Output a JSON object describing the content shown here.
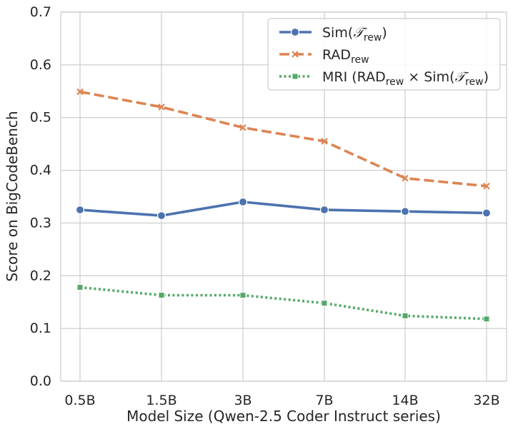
{
  "chart_data": {
    "type": "line",
    "categories": [
      "0.5B",
      "1.5B",
      "3B",
      "7B",
      "14B",
      "32B"
    ],
    "xlabel": "Model Size (Qwen-2.5 Coder Instruct series)",
    "ylabel": "Score on BigCodeBench",
    "ylim": [
      0,
      0.7
    ],
    "yticks": [
      "0.0",
      "0.1",
      "0.2",
      "0.3",
      "0.4",
      "0.5",
      "0.6",
      "0.7"
    ],
    "grid": true,
    "legend_position": "top-right",
    "series": [
      {
        "name": "Sim(𝒯rew)",
        "legend": {
          "pre": "Sim(",
          "main": "𝒯",
          "sub": "rew",
          "post": ")"
        },
        "values": [
          0.325,
          0.314,
          0.34,
          0.325,
          0.322,
          0.319
        ],
        "color": "#4c72b0",
        "style": "solid",
        "marker": "circle"
      },
      {
        "name": "RADrew",
        "legend": {
          "pre": "RAD",
          "sub": "rew"
        },
        "values": [
          0.549,
          0.52,
          0.481,
          0.455,
          0.385,
          0.37
        ],
        "color": "#dd8452",
        "style": "dashed",
        "marker": "x"
      },
      {
        "name": "MRI (RADrew × Sim(𝒯rew))",
        "legend": {
          "pre": "MRI (RAD",
          "sub": "rew",
          "mid": " × Sim(",
          "main": "𝒯",
          "sub2": "rew",
          "post": ")"
        },
        "values": [
          0.178,
          0.163,
          0.163,
          0.148,
          0.124,
          0.118
        ],
        "color": "#55a868",
        "style": "dotted",
        "marker": "square"
      }
    ]
  }
}
